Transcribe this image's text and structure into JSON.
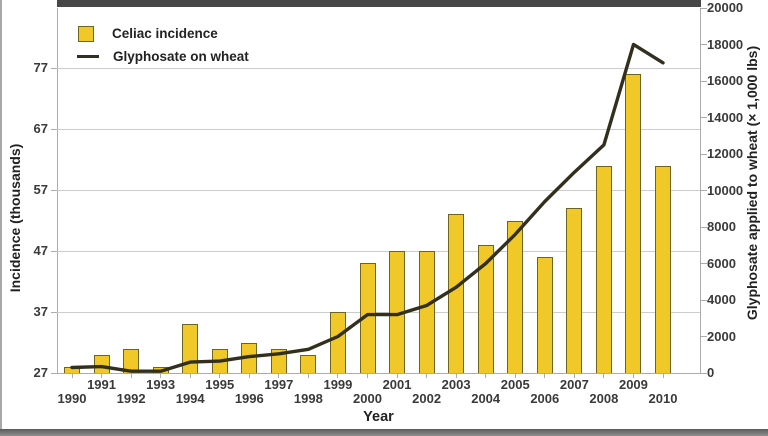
{
  "figure": {
    "colors": {
      "bar_fill": "#F0C929",
      "bar_border": "#6F641E",
      "line": "#32301D",
      "grid": "#CCCCCC",
      "axis": "#ABABAB",
      "band": "#474747",
      "text": "#3A3A3A"
    }
  },
  "chart_data": {
    "type": "combo-bar-line",
    "categories": [
      "1990",
      "1991",
      "1992",
      "1993",
      "1994",
      "1995",
      "1996",
      "1997",
      "1998",
      "1999",
      "2000",
      "2001",
      "2002",
      "2003",
      "2004",
      "2005",
      "2006",
      "2007",
      "2008",
      "2009",
      "2010"
    ],
    "series": [
      {
        "name": "Celiac incidence",
        "type": "bar",
        "axis": "left",
        "values": [
          28,
          30,
          31,
          28,
          35,
          31,
          32,
          31,
          30,
          37,
          45,
          47,
          47,
          53,
          48,
          52,
          46,
          54,
          61,
          76,
          61
        ]
      },
      {
        "name": "Glyphosate on wheat",
        "type": "line",
        "axis": "right",
        "values": [
          300,
          350,
          100,
          100,
          600,
          650,
          900,
          1050,
          1300,
          2000,
          3200,
          3200,
          3700,
          4700,
          6000,
          7600,
          9400,
          11000,
          12500,
          18000,
          17000
        ]
      }
    ],
    "xlabel": "Year",
    "left_axis": {
      "label": "Incidence (thousands)",
      "ticks": [
        27,
        37,
        47,
        57,
        67,
        77
      ],
      "min": 27
    },
    "right_axis": {
      "label": "Glyphosate applied to wheat (× 1,000 lbs)",
      "ticks": [
        0,
        2000,
        4000,
        6000,
        8000,
        10000,
        12000,
        14000,
        16000,
        18000,
        20000
      ],
      "min": 0,
      "max": 20000
    },
    "legend_position": "top-left",
    "grid": "horizontal"
  }
}
